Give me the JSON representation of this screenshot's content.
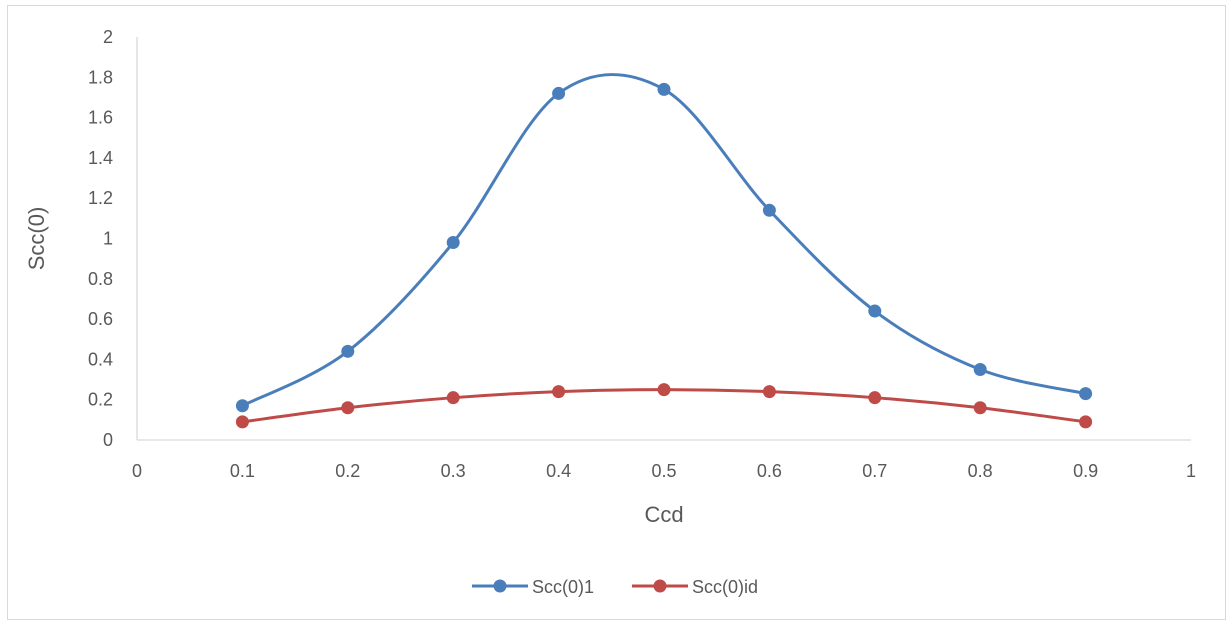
{
  "chart_data": {
    "type": "scatter",
    "title": "",
    "xlabel": "Ccd",
    "ylabel": "Scc(0)",
    "xlim": [
      0,
      1
    ],
    "ylim": [
      0,
      2
    ],
    "x_ticks": [
      "0",
      "0.1",
      "0.2",
      "0.3",
      "0.4",
      "0.5",
      "0.6",
      "0.7",
      "0.8",
      "0.9",
      "1"
    ],
    "y_ticks": [
      "0",
      "0.2",
      "0.4",
      "0.6",
      "0.8",
      "1",
      "1.2",
      "1.4",
      "1.6",
      "1.8",
      "2"
    ],
    "grid": false,
    "smooth_lines": true,
    "markers": true,
    "legend_position": "bottom",
    "series": [
      {
        "name": "Scc(0)1",
        "color": "#4a7ebb",
        "x": [
          0.1,
          0.2,
          0.3,
          0.4,
          0.5,
          0.6,
          0.7,
          0.8,
          0.9
        ],
        "y": [
          0.17,
          0.44,
          0.98,
          1.72,
          1.74,
          1.14,
          0.64,
          0.35,
          0.23
        ]
      },
      {
        "name": "Scc(0)id",
        "color": "#be4b48",
        "x": [
          0.1,
          0.2,
          0.3,
          0.4,
          0.5,
          0.6,
          0.7,
          0.8,
          0.9
        ],
        "y": [
          0.09,
          0.16,
          0.21,
          0.24,
          0.25,
          0.24,
          0.21,
          0.16,
          0.09
        ]
      }
    ]
  }
}
